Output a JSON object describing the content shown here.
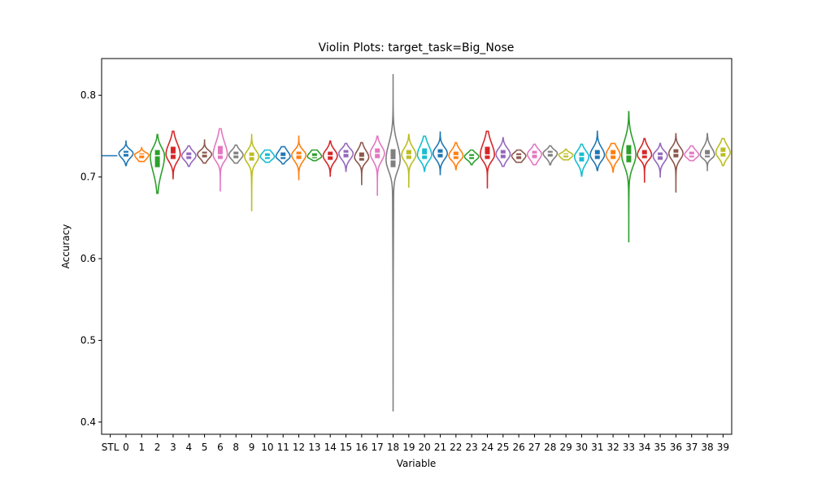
{
  "chart_data": {
    "type": "violin",
    "title": "Violin Plots: target_task=Big_Nose",
    "xlabel": "Variable",
    "ylabel": "Accuracy",
    "ylim": [
      0.385,
      0.845
    ],
    "yticks": [
      "0.4",
      "0.5",
      "0.6",
      "0.7",
      "0.8"
    ],
    "grid": false,
    "stl_baseline": 0.726,
    "categories": [
      "STL",
      "0",
      "1",
      "2",
      "3",
      "4",
      "5",
      "6",
      "8",
      "9",
      "10",
      "11",
      "12",
      "13",
      "14",
      "15",
      "16",
      "17",
      "18",
      "19",
      "20",
      "21",
      "22",
      "23",
      "24",
      "25",
      "26",
      "27",
      "28",
      "29",
      "30",
      "31",
      "32",
      "33",
      "34",
      "35",
      "36",
      "37",
      "38",
      "39"
    ],
    "colors": [
      "#1f77b4",
      "#ff7f0e",
      "#2ca02c",
      "#d62728",
      "#9467bd",
      "#8c564b",
      "#e377c2",
      "#7f7f7f",
      "#bcbd22",
      "#17becf"
    ],
    "violins": [
      {
        "category": "0",
        "min": 0.714,
        "max": 0.744,
        "q1": 0.725,
        "median": 0.729,
        "q3": 0.732
      },
      {
        "category": "1",
        "min": 0.719,
        "max": 0.736,
        "q1": 0.723,
        "median": 0.727,
        "q3": 0.729
      },
      {
        "category": "2",
        "min": 0.68,
        "max": 0.752,
        "q1": 0.712,
        "median": 0.726,
        "q3": 0.733
      },
      {
        "category": "3",
        "min": 0.698,
        "max": 0.756,
        "q1": 0.722,
        "median": 0.728,
        "q3": 0.737
      },
      {
        "category": "4",
        "min": 0.713,
        "max": 0.738,
        "q1": 0.722,
        "median": 0.726,
        "q3": 0.73
      },
      {
        "category": "5",
        "min": 0.717,
        "max": 0.746,
        "q1": 0.724,
        "median": 0.728,
        "q3": 0.731
      },
      {
        "category": "6",
        "min": 0.683,
        "max": 0.759,
        "q1": 0.722,
        "median": 0.727,
        "q3": 0.738
      },
      {
        "category": "8",
        "min": 0.717,
        "max": 0.739,
        "q1": 0.723,
        "median": 0.727,
        "q3": 0.731
      },
      {
        "category": "9",
        "min": 0.658,
        "max": 0.752,
        "q1": 0.72,
        "median": 0.725,
        "q3": 0.73
      },
      {
        "category": "10",
        "min": 0.718,
        "max": 0.733,
        "q1": 0.722,
        "median": 0.725,
        "q3": 0.729
      },
      {
        "category": "11",
        "min": 0.716,
        "max": 0.737,
        "q1": 0.722,
        "median": 0.725,
        "q3": 0.73
      },
      {
        "category": "12",
        "min": 0.696,
        "max": 0.75,
        "q1": 0.722,
        "median": 0.727,
        "q3": 0.731
      },
      {
        "category": "13",
        "min": 0.72,
        "max": 0.733,
        "q1": 0.723,
        "median": 0.725,
        "q3": 0.729
      },
      {
        "category": "14",
        "min": 0.701,
        "max": 0.744,
        "q1": 0.721,
        "median": 0.726,
        "q3": 0.731
      },
      {
        "category": "15",
        "min": 0.707,
        "max": 0.741,
        "q1": 0.724,
        "median": 0.729,
        "q3": 0.733
      },
      {
        "category": "16",
        "min": 0.69,
        "max": 0.742,
        "q1": 0.72,
        "median": 0.724,
        "q3": 0.73
      },
      {
        "category": "17",
        "min": 0.677,
        "max": 0.75,
        "q1": 0.723,
        "median": 0.729,
        "q3": 0.735
      },
      {
        "category": "18",
        "min": 0.413,
        "max": 0.826,
        "q1": 0.712,
        "median": 0.721,
        "q3": 0.734
      },
      {
        "category": "19",
        "min": 0.687,
        "max": 0.752,
        "q1": 0.722,
        "median": 0.727,
        "q3": 0.733
      },
      {
        "category": "20",
        "min": 0.707,
        "max": 0.75,
        "q1": 0.722,
        "median": 0.727,
        "q3": 0.735
      },
      {
        "category": "21",
        "min": 0.703,
        "max": 0.755,
        "q1": 0.724,
        "median": 0.729,
        "q3": 0.734
      },
      {
        "category": "22",
        "min": 0.709,
        "max": 0.742,
        "q1": 0.722,
        "median": 0.726,
        "q3": 0.731
      },
      {
        "category": "23",
        "min": 0.715,
        "max": 0.733,
        "q1": 0.722,
        "median": 0.725,
        "q3": 0.728
      },
      {
        "category": "24",
        "min": 0.686,
        "max": 0.756,
        "q1": 0.722,
        "median": 0.727,
        "q3": 0.737
      },
      {
        "category": "25",
        "min": 0.713,
        "max": 0.748,
        "q1": 0.723,
        "median": 0.728,
        "q3": 0.733
      },
      {
        "category": "26",
        "min": 0.718,
        "max": 0.733,
        "q1": 0.722,
        "median": 0.726,
        "q3": 0.729
      },
      {
        "category": "27",
        "min": 0.715,
        "max": 0.74,
        "q1": 0.723,
        "median": 0.728,
        "q3": 0.732
      },
      {
        "category": "28",
        "min": 0.715,
        "max": 0.738,
        "q1": 0.725,
        "median": 0.729,
        "q3": 0.732
      },
      {
        "category": "29",
        "min": 0.721,
        "max": 0.734,
        "q1": 0.724,
        "median": 0.727,
        "q3": 0.729
      },
      {
        "category": "30",
        "min": 0.701,
        "max": 0.74,
        "q1": 0.719,
        "median": 0.725,
        "q3": 0.73
      },
      {
        "category": "31",
        "min": 0.708,
        "max": 0.756,
        "q1": 0.722,
        "median": 0.727,
        "q3": 0.733
      },
      {
        "category": "32",
        "min": 0.706,
        "max": 0.741,
        "q1": 0.722,
        "median": 0.727,
        "q3": 0.733
      },
      {
        "category": "33",
        "min": 0.62,
        "max": 0.78,
        "q1": 0.718,
        "median": 0.727,
        "q3": 0.739
      },
      {
        "category": "34",
        "min": 0.693,
        "max": 0.747,
        "q1": 0.723,
        "median": 0.727,
        "q3": 0.733
      },
      {
        "category": "35",
        "min": 0.7,
        "max": 0.741,
        "q1": 0.721,
        "median": 0.726,
        "q3": 0.73
      },
      {
        "category": "36",
        "min": 0.681,
        "max": 0.753,
        "q1": 0.724,
        "median": 0.729,
        "q3": 0.734
      },
      {
        "category": "37",
        "min": 0.72,
        "max": 0.738,
        "q1": 0.724,
        "median": 0.727,
        "q3": 0.731
      },
      {
        "category": "38",
        "min": 0.708,
        "max": 0.753,
        "q1": 0.724,
        "median": 0.727,
        "q3": 0.733
      },
      {
        "category": "39",
        "min": 0.714,
        "max": 0.747,
        "q1": 0.725,
        "median": 0.73,
        "q3": 0.736
      }
    ]
  }
}
